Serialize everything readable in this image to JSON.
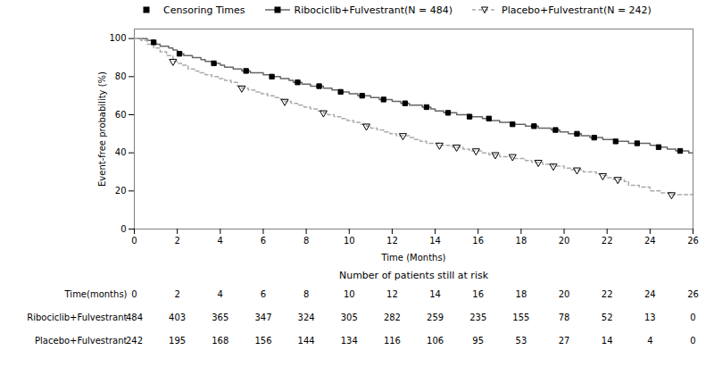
{
  "chart_data": {
    "type": "step",
    "title": "",
    "xlabel": "Time (Months)",
    "ylabel": "Event-free probability (%)",
    "xlim": [
      0,
      26
    ],
    "ylim": [
      0,
      105
    ],
    "xticks": [
      0,
      2,
      4,
      6,
      8,
      10,
      12,
      14,
      16,
      18,
      20,
      22,
      24,
      26
    ],
    "yticks": [
      0,
      20,
      40,
      60,
      80,
      100
    ],
    "grid": false,
    "legend": "top",
    "censor_label": "Censoring Times",
    "censor_color": "#000000",
    "series": [
      {
        "name": "Ribociclib+Fulvestrant(N = 484)",
        "color": "#666666",
        "line_style": "solid",
        "marker": "filled_square",
        "x": [
          0,
          0.3,
          0.6,
          0.9,
          1.0,
          1.2,
          1.4,
          1.6,
          1.8,
          2.0,
          2.1,
          2.3,
          2.5,
          2.7,
          2.9,
          3.1,
          3.3,
          3.5,
          3.7,
          3.9,
          4.0,
          4.2,
          4.4,
          4.6,
          4.8,
          5.0,
          5.2,
          5.4,
          5.6,
          5.8,
          6.0,
          6.2,
          6.4,
          6.6,
          6.8,
          7.0,
          7.2,
          7.4,
          7.6,
          7.8,
          8.0,
          8.2,
          8.4,
          8.6,
          8.8,
          9.0,
          9.2,
          9.4,
          9.6,
          9.8,
          10.0,
          10.2,
          10.4,
          10.6,
          10.8,
          11.0,
          11.2,
          11.4,
          11.6,
          11.8,
          12.0,
          12.2,
          12.4,
          12.6,
          12.8,
          13.0,
          13.2,
          13.4,
          13.6,
          13.8,
          14.0,
          14.2,
          14.4,
          14.6,
          14.8,
          15.0,
          15.2,
          15.4,
          15.6,
          15.8,
          16.0,
          16.2,
          16.4,
          16.5,
          16.6,
          16.8,
          17.0,
          17.2,
          17.4,
          17.6,
          17.8,
          18.0,
          18.2,
          18.4,
          18.6,
          18.8,
          19.0,
          19.2,
          19.4,
          19.6,
          19.8,
          20.0,
          20.2,
          20.4,
          20.6,
          20.8,
          21.0,
          21.2,
          21.4,
          21.6,
          21.8,
          22.0,
          22.2,
          22.4,
          22.6,
          22.8,
          23.0,
          23.2,
          23.4,
          23.6,
          23.8,
          24.0,
          24.2,
          24.4,
          24.6,
          24.8,
          25.0,
          25.2,
          25.4,
          25.6,
          25.8,
          26.0
        ],
        "values": [
          100,
          100,
          99,
          98,
          97,
          96,
          96,
          95,
          94,
          93,
          92,
          91,
          91,
          90,
          90,
          89,
          88,
          88,
          87,
          87,
          86,
          85,
          85,
          84,
          84,
          83,
          83,
          82,
          82,
          82,
          81,
          81,
          80,
          80,
          79,
          79,
          78,
          77,
          77,
          76,
          76,
          75,
          75,
          75,
          74,
          74,
          73,
          73,
          72,
          72,
          71,
          71,
          70,
          70,
          70,
          69,
          69,
          68,
          68,
          68,
          67,
          67,
          66,
          66,
          65,
          65,
          65,
          64,
          64,
          63,
          62,
          62,
          61,
          61,
          61,
          60,
          60,
          60,
          59,
          59,
          59,
          58,
          58,
          58,
          57,
          57,
          56,
          56,
          56,
          55,
          55,
          55,
          54,
          54,
          54,
          53,
          53,
          53,
          52,
          52,
          51,
          51,
          50,
          50,
          50,
          49,
          49,
          48,
          48,
          48,
          47,
          47,
          47,
          46,
          46,
          46,
          45,
          45,
          45,
          45,
          45,
          44,
          44,
          43,
          43,
          42,
          42,
          41,
          41,
          41,
          40,
          40
        ],
        "censor_x": [
          0.9,
          2.1,
          3.7,
          5.2,
          6.4,
          7.6,
          8.6,
          9.6,
          10.6,
          11.6,
          12.6,
          13.6,
          14.6,
          15.6,
          16.5,
          17.6,
          18.6,
          19.6,
          20.6,
          21.4,
          22.4,
          23.4,
          24.4,
          25.4
        ],
        "censor_values": [
          98,
          92,
          87,
          83,
          80,
          77,
          75,
          72,
          70,
          68,
          66,
          64,
          61,
          59,
          58,
          55,
          54,
          52,
          50,
          48,
          46,
          45,
          43,
          41
        ]
      },
      {
        "name": "Placebo+Fulvestrant(N = 242)",
        "color": "#aaaaaa",
        "line_style": "dashed",
        "marker": "open_triangle_down",
        "x": [
          0,
          0.3,
          0.6,
          0.9,
          1.2,
          1.5,
          1.8,
          2.0,
          2.2,
          2.5,
          2.8,
          3.0,
          3.3,
          3.6,
          3.9,
          4.2,
          4.5,
          4.8,
          5.0,
          5.3,
          5.6,
          5.9,
          6.2,
          6.5,
          6.8,
          7.0,
          7.3,
          7.6,
          7.9,
          8.2,
          8.5,
          8.8,
          9.0,
          9.3,
          9.6,
          9.9,
          10.2,
          10.5,
          10.8,
          11.0,
          11.3,
          11.6,
          11.9,
          12.2,
          12.5,
          12.8,
          13.0,
          13.3,
          13.6,
          13.9,
          14.2,
          14.5,
          14.8,
          15.0,
          15.3,
          15.6,
          15.9,
          16.2,
          16.5,
          16.8,
          17.0,
          17.3,
          17.6,
          17.9,
          18.2,
          18.5,
          18.8,
          19.0,
          19.3,
          19.5,
          19.8,
          20.0,
          20.3,
          20.6,
          20.9,
          21.2,
          21.5,
          21.8,
          22.0,
          22.3,
          22.5,
          22.8,
          23.0,
          23.5,
          24.0,
          24.5,
          25.0,
          25.5,
          26.0
        ],
        "values": [
          100,
          99,
          97,
          95,
          93,
          91,
          88,
          87,
          86,
          84,
          83,
          82,
          81,
          80,
          79,
          78,
          77,
          75,
          74,
          73,
          72,
          71,
          70,
          69,
          68,
          67,
          66,
          65,
          64,
          63,
          62,
          61,
          60,
          59,
          58,
          57,
          56,
          55,
          54,
          53,
          52,
          51,
          50,
          49,
          49,
          48,
          47,
          46,
          45,
          45,
          44,
          44,
          43,
          43,
          42,
          41,
          41,
          40,
          39,
          39,
          38,
          38,
          37,
          37,
          36,
          35,
          35,
          34,
          34,
          33,
          33,
          32,
          31,
          31,
          30,
          30,
          29,
          28,
          27,
          26,
          26,
          25,
          23,
          22,
          20,
          19,
          18,
          18,
          18
        ],
        "censor_x": [
          1.8,
          5.0,
          7.0,
          8.8,
          10.8,
          12.5,
          14.2,
          15.0,
          15.9,
          16.8,
          17.6,
          18.8,
          19.5,
          20.6,
          21.8,
          22.5,
          25.0
        ],
        "censor_values": [
          88,
          74,
          67,
          61,
          54,
          49,
          44,
          43,
          41,
          39,
          38,
          35,
          33,
          31,
          28,
          26,
          18
        ]
      }
    ],
    "risk_table": {
      "header": "Number of patients still at risk",
      "time_label": "Time(months)",
      "times": [
        0,
        2,
        4,
        6,
        8,
        10,
        12,
        14,
        16,
        18,
        20,
        22,
        24,
        26
      ],
      "rows": [
        {
          "name": "Ribociclib+Fulvestrant",
          "values": [
            484,
            403,
            365,
            347,
            324,
            305,
            282,
            259,
            235,
            155,
            78,
            52,
            13,
            0
          ]
        },
        {
          "name": "Placebo+Fulvestrant",
          "values": [
            242,
            195,
            168,
            156,
            144,
            134,
            116,
            106,
            95,
            53,
            27,
            14,
            4,
            0
          ]
        }
      ]
    }
  }
}
